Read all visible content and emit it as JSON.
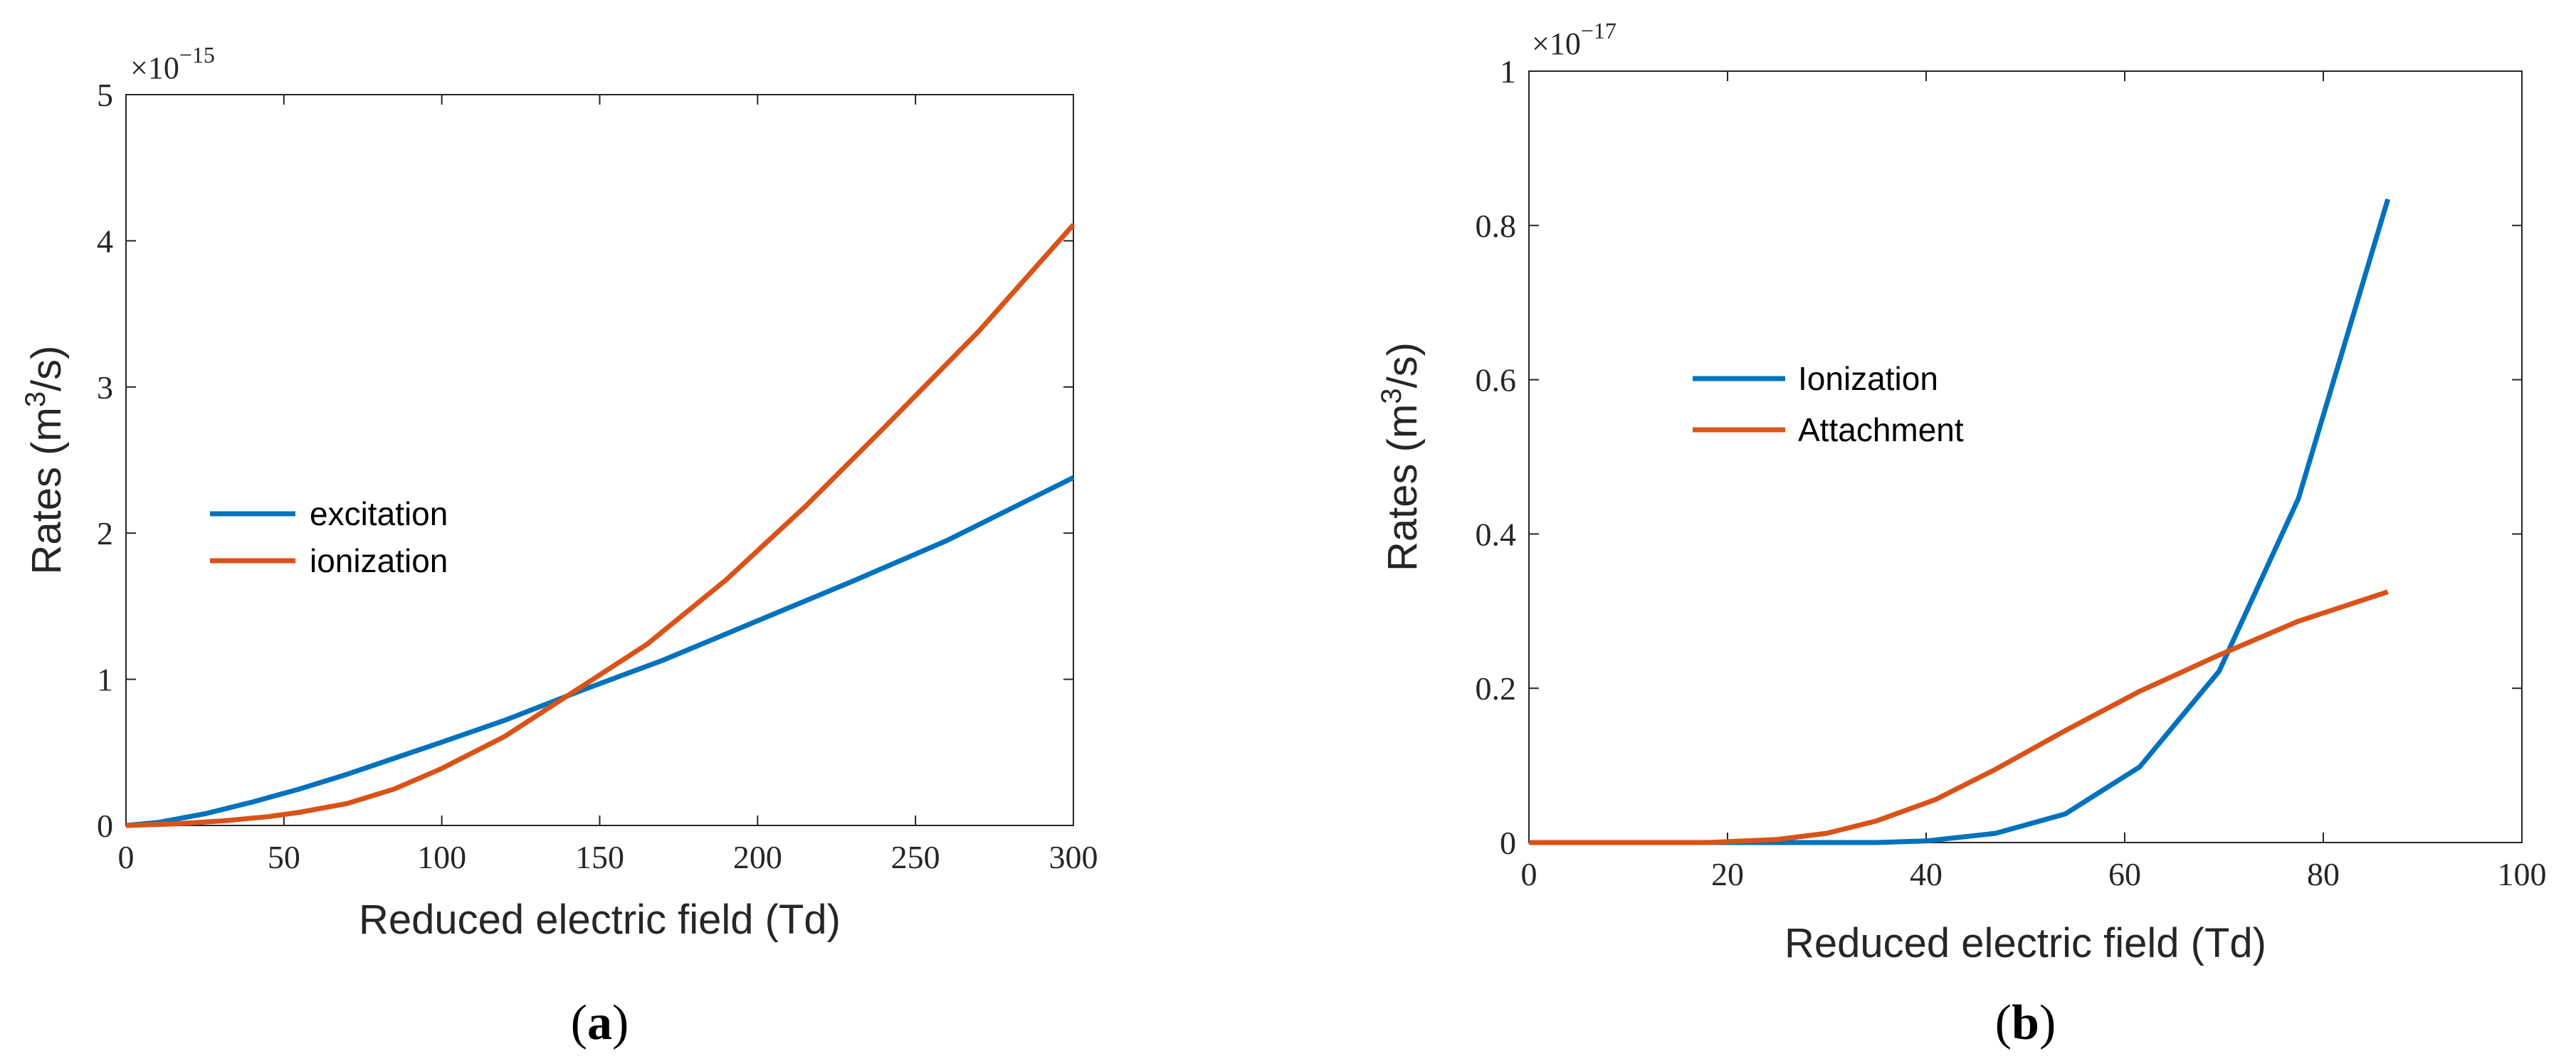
{
  "chart_data": [
    {
      "type": "line",
      "panel_label": "(a)",
      "title": "",
      "xlabel": "Reduced electric field (Td)",
      "ylabel_main": "Rates (m",
      "ylabel_sup": "3",
      "ylabel_end": "/s)",
      "exponent_base": "×10",
      "exponent_power": "−15",
      "xlim": [
        0,
        300
      ],
      "ylim": [
        0,
        5
      ],
      "xticks": [
        0,
        50,
        100,
        150,
        200,
        250,
        300
      ],
      "yticks": [
        0,
        1,
        2,
        3,
        4,
        5
      ],
      "xtick_labels": [
        "0",
        "50",
        "100",
        "150",
        "200",
        "250",
        "300"
      ],
      "ytick_labels": [
        "0",
        "1",
        "2",
        "3",
        "4",
        "5"
      ],
      "legend_position": "middle-left",
      "series": [
        {
          "name": "excitation",
          "color": "#0072BD",
          "x": [
            0,
            10,
            25,
            40,
            55,
            70,
            85,
            100,
            120,
            145,
            170,
            200,
            230,
            260,
            300
          ],
          "y": [
            0,
            0.02,
            0.08,
            0.16,
            0.25,
            0.35,
            0.46,
            0.57,
            0.72,
            0.93,
            1.13,
            1.4,
            1.67,
            1.95,
            2.38
          ]
        },
        {
          "name": "ionization",
          "color": "#D95319",
          "x": [
            0,
            15,
            30,
            45,
            55,
            70,
            85,
            100,
            120,
            145,
            165,
            190,
            215,
            240,
            270,
            300
          ],
          "y": [
            0,
            0.01,
            0.03,
            0.06,
            0.09,
            0.15,
            0.25,
            0.39,
            0.61,
            0.96,
            1.24,
            1.68,
            2.18,
            2.72,
            3.38,
            4.11
          ]
        }
      ]
    },
    {
      "type": "line",
      "panel_label": "(b)",
      "title": "",
      "xlabel": "Reduced electric field (Td)",
      "ylabel_main": "Rates (m",
      "ylabel_sup": "3",
      "ylabel_end": "/s)",
      "exponent_base": "×10",
      "exponent_power": "−17",
      "xlim": [
        0,
        100
      ],
      "ylim": [
        0,
        1
      ],
      "xticks": [
        0,
        20,
        40,
        60,
        80,
        100
      ],
      "yticks": [
        0,
        0.2,
        0.4,
        0.6,
        0.8,
        1
      ],
      "xtick_labels": [
        "0",
        "20",
        "40",
        "60",
        "80",
        "100"
      ],
      "ytick_labels": [
        "0",
        "0.2",
        "0.4",
        "0.6",
        "0.8",
        "1"
      ],
      "legend_position": "upper-left",
      "series": [
        {
          "name": "Ionization",
          "color": "#0072BD",
          "x": [
            0,
            10,
            20,
            30,
            35,
            40,
            47,
            54,
            61.5,
            69.5,
            77.5,
            86.5
          ],
          "y": [
            0,
            0,
            0,
            0,
            0,
            0.002,
            0.012,
            0.037,
            0.098,
            0.222,
            0.446,
            0.834
          ]
        },
        {
          "name": "Attachment",
          "color": "#D95319",
          "x": [
            0,
            10,
            18,
            25,
            30,
            35,
            41,
            47,
            54,
            61.5,
            69.5,
            77.5,
            86.5
          ],
          "y": [
            0,
            0,
            0,
            0.004,
            0.012,
            0.028,
            0.056,
            0.095,
            0.145,
            0.196,
            0.243,
            0.287,
            0.325
          ]
        }
      ]
    }
  ]
}
